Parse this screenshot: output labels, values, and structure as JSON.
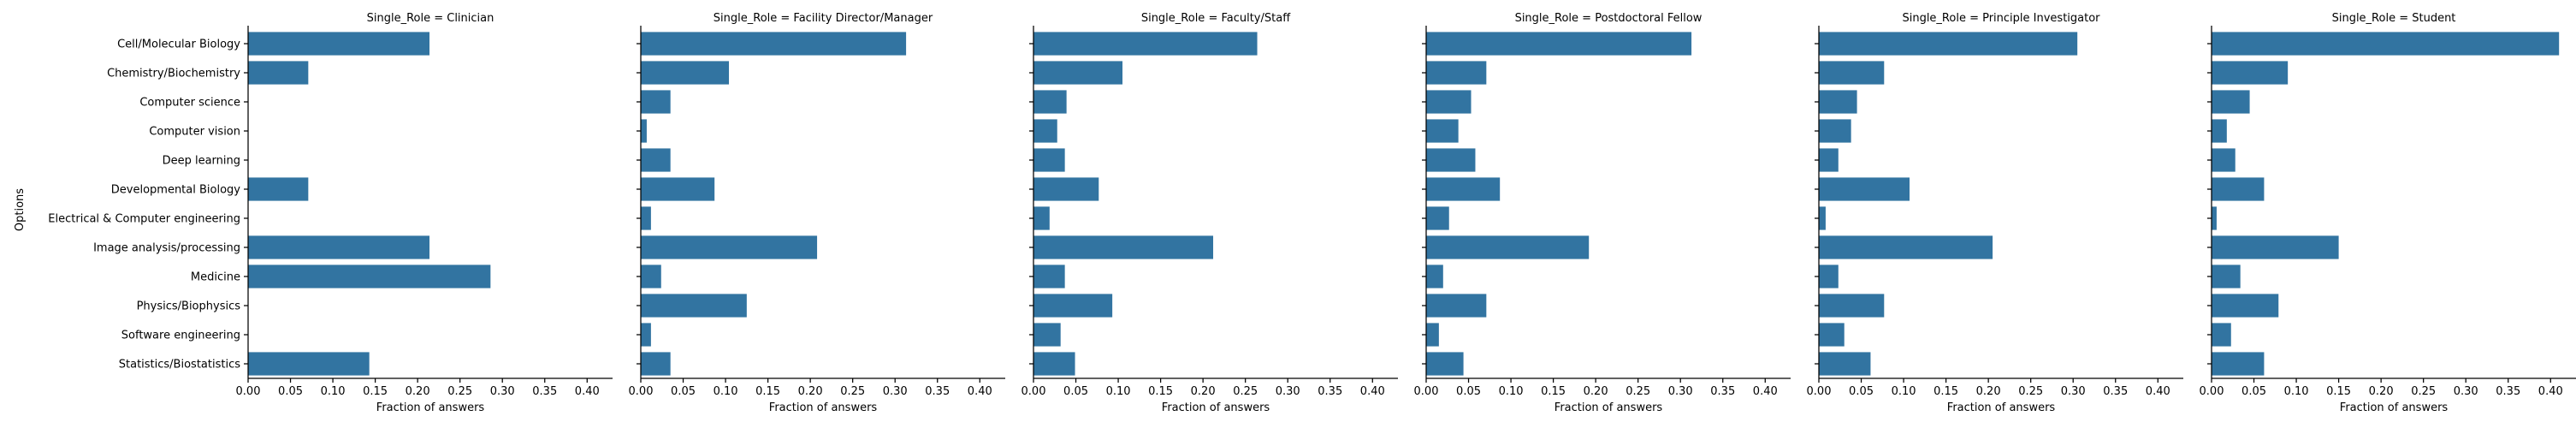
{
  "ylabel": "Options",
  "xlabel": "Fraction of answers",
  "bar_color": "#3274a1",
  "chart_data": {
    "type": "bar",
    "orientation": "horizontal",
    "facet_variable": "Single_Role",
    "categories": [
      "Cell/Molecular Biology",
      "Chemistry/Biochemistry",
      "Computer science",
      "Computer vision",
      "Deep learning",
      "Developmental Biology",
      "Electrical & Computer engineering",
      "Image analysis/processing",
      "Medicine",
      "Physics/Biophysics",
      "Software engineering",
      "Statistics/Biostatistics"
    ],
    "xlim": [
      0,
      0.43
    ],
    "xticks": [
      0.0,
      0.05,
      0.1,
      0.15,
      0.2,
      0.25,
      0.3,
      0.35,
      0.4
    ],
    "xtick_labels": [
      "0.00",
      "0.05",
      "0.10",
      "0.15",
      "0.20",
      "0.25",
      "0.30",
      "0.35",
      "0.40"
    ],
    "panels": [
      {
        "title": "Single_Role = Clinician",
        "values": [
          0.214,
          0.071,
          0,
          0,
          0,
          0.071,
          0,
          0.214,
          0.286,
          0,
          0,
          0.143
        ]
      },
      {
        "title": "Single_Role = Facility Director/Manager",
        "values": [
          0.313,
          0.104,
          0.035,
          0.007,
          0.035,
          0.087,
          0.012,
          0.208,
          0.024,
          0.125,
          0.012,
          0.035
        ]
      },
      {
        "title": "Single_Role = Faculty/Staff",
        "values": [
          0.264,
          0.105,
          0.039,
          0.028,
          0.037,
          0.077,
          0.019,
          0.212,
          0.037,
          0.093,
          0.032,
          0.049
        ]
      },
      {
        "title": "Single_Role = Postdoctoral Fellow",
        "values": [
          0.313,
          0.071,
          0.053,
          0.038,
          0.058,
          0.087,
          0.027,
          0.192,
          0.02,
          0.071,
          0.015,
          0.044
        ]
      },
      {
        "title": "Single_Role = Principle Investigator",
        "values": [
          0.305,
          0.077,
          0.045,
          0.038,
          0.023,
          0.107,
          0.008,
          0.205,
          0.023,
          0.077,
          0.03,
          0.061
        ]
      },
      {
        "title": "Single_Role = Student",
        "values": [
          0.41,
          0.09,
          0.045,
          0.018,
          0.028,
          0.062,
          0.006,
          0.15,
          0.034,
          0.079,
          0.023,
          0.062
        ]
      }
    ]
  }
}
